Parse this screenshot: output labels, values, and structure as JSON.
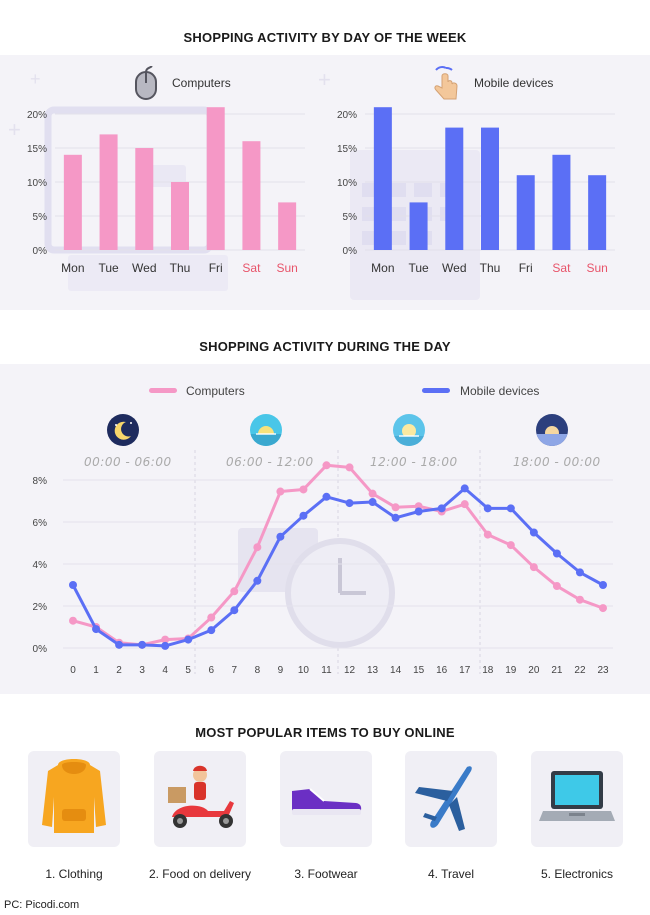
{
  "titles": {
    "by_day": "SHOPPING ACTIVITY BY DAY OF THE WEEK",
    "during_day": "SHOPPING ACTIVITY DURING THE DAY",
    "popular": "MOST POPULAR ITEMS TO BUY ONLINE"
  },
  "panels": {
    "computers_label": "Computers",
    "mobile_label": "Mobile devices"
  },
  "legend": {
    "computers": "Computers",
    "mobile": "Mobile devices"
  },
  "periods": [
    "00:00 - 06:00",
    "06:00 - 12:00",
    "12:00 - 18:00",
    "18:00 - 00:00"
  ],
  "items": [
    "1. Clothing",
    "2. Food on delivery",
    "3. Footwear",
    "4. Travel",
    "5. Electronics"
  ],
  "footer": "PC: Picodi.com",
  "colors": {
    "computers": "#f598c6",
    "mobile": "#5b6ff5",
    "weekend": "#e8546a",
    "band": "#f4f3f8"
  },
  "chart_data": [
    {
      "type": "bar",
      "series_label": "Computers",
      "categories": [
        "Mon",
        "Tue",
        "Wed",
        "Thu",
        "Fri",
        "Sat",
        "Sun"
      ],
      "values": [
        14,
        17,
        15,
        10,
        21,
        16,
        7
      ],
      "y_ticks": [
        "0%",
        "5%",
        "10%",
        "15%",
        "20%"
      ],
      "ylim": [
        0,
        20
      ],
      "weekend_categories": [
        "Sat",
        "Sun"
      ]
    },
    {
      "type": "bar",
      "series_label": "Mobile devices",
      "categories": [
        "Mon",
        "Tue",
        "Wed",
        "Thu",
        "Fri",
        "Sat",
        "Sun"
      ],
      "values": [
        21,
        7,
        18,
        18,
        11,
        14,
        11
      ],
      "y_ticks": [
        "0%",
        "5%",
        "10%",
        "15%",
        "20%"
      ],
      "ylim": [
        0,
        20
      ],
      "weekend_categories": [
        "Sat",
        "Sun"
      ]
    },
    {
      "type": "line",
      "x": [
        0,
        1,
        2,
        3,
        4,
        5,
        6,
        7,
        8,
        9,
        10,
        11,
        12,
        13,
        14,
        15,
        16,
        17,
        18,
        19,
        20,
        21,
        22,
        23
      ],
      "series": [
        {
          "name": "Computers",
          "values": [
            1.3,
            1.0,
            0.25,
            0.15,
            0.4,
            0.45,
            1.45,
            2.7,
            4.8,
            7.45,
            7.55,
            8.7,
            8.6,
            7.35,
            6.7,
            6.75,
            6.5,
            6.85,
            5.4,
            4.9,
            3.85,
            2.95,
            2.3,
            1.9
          ]
        },
        {
          "name": "Mobile devices",
          "values": [
            3.0,
            0.9,
            0.15,
            0.15,
            0.1,
            0.4,
            0.85,
            1.8,
            3.2,
            5.3,
            6.3,
            7.2,
            6.9,
            6.95,
            6.2,
            6.5,
            6.65,
            7.6,
            6.65,
            6.65,
            5.5,
            4.5,
            3.6,
            3.0
          ]
        }
      ],
      "y_ticks": [
        "0%",
        "2%",
        "4%",
        "6%",
        "8%"
      ],
      "ylim": [
        0,
        8
      ]
    }
  ]
}
